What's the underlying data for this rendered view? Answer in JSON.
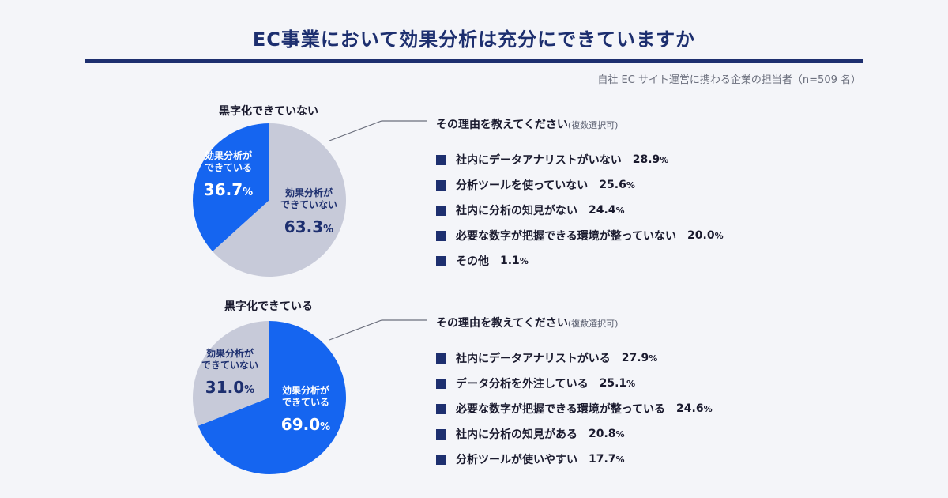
{
  "page": {
    "title": "EC事業において効果分析は充分にできていますか",
    "source": "自社 EC サイト運営に携わる企業の担当者（n=509 名）"
  },
  "colors": {
    "blue": "#1565f0",
    "gray": "#c7cad9",
    "navy": "#1d2f6f"
  },
  "charts": [
    {
      "title": "黒字化できていない",
      "reasons_title": "その理由を教えてください",
      "reasons_note": "(複数選択可)",
      "reasons": [
        {
          "label": "社内にデータアナリストがいない",
          "value": "28.9",
          "unit": "%"
        },
        {
          "label": "分析ツールを使っていない",
          "value": "25.6",
          "unit": "%"
        },
        {
          "label": "社内に分析の知見がない",
          "value": "24.4",
          "unit": "%"
        },
        {
          "label": "必要な数字が把握できる環境が整っていない",
          "value": "20.0",
          "unit": "%"
        },
        {
          "label": "その他",
          "value": "1.1",
          "unit": "%"
        }
      ]
    },
    {
      "title": "黒字化できている",
      "reasons_title": "その理由を教えてください",
      "reasons_note": "(複数選択可)",
      "reasons": [
        {
          "label": "社内にデータアナリストがいる",
          "value": "27.9",
          "unit": "%"
        },
        {
          "label": "データ分析を外注している",
          "value": "25.1",
          "unit": "%"
        },
        {
          "label": "必要な数字が把握できる環境が整っている",
          "value": "24.6",
          "unit": "%"
        },
        {
          "label": "社内に分析の知見がある",
          "value": "20.8",
          "unit": "%"
        },
        {
          "label": "分析ツールが使いやすい",
          "value": "17.7",
          "unit": "%"
        }
      ]
    }
  ],
  "chart_data": [
    {
      "type": "pie",
      "title": "黒字化できていない",
      "slices": [
        {
          "label_lines": [
            "効果分析が",
            "できていない"
          ],
          "value": 63.3,
          "color": "#c7cad9",
          "text_color": "#1d2f6f"
        },
        {
          "label_lines": [
            "効果分析が",
            "できている"
          ],
          "value": 36.7,
          "color": "#1565f0",
          "text_color": "#ffffff"
        }
      ]
    },
    {
      "type": "pie",
      "title": "黒字化できている",
      "slices": [
        {
          "label_lines": [
            "効果分析が",
            "できている"
          ],
          "value": 69.0,
          "color": "#1565f0",
          "text_color": "#ffffff"
        },
        {
          "label_lines": [
            "効果分析が",
            "できていない"
          ],
          "value": 31.0,
          "color": "#c7cad9",
          "text_color": "#1d2f6f"
        }
      ]
    },
    {
      "type": "bar",
      "title": "その理由を教えてください",
      "categories": [
        "社内にデータアナリストがいない",
        "分析ツールを使っていない",
        "社内に分析の知見がない",
        "必要な数字が把握できる環境が整っていない",
        "その他"
      ],
      "values": [
        28.9,
        25.6,
        24.4,
        20.0,
        1.1
      ],
      "unit": "%"
    },
    {
      "type": "bar",
      "title": "その理由を教えてください",
      "categories": [
        "社内にデータアナリストがいる",
        "データ分析を外注している",
        "必要な数字が把握できる環境が整っている",
        "社内に分析の知見がある",
        "分析ツールが使いやすい"
      ],
      "values": [
        27.9,
        25.1,
        24.6,
        20.8,
        17.7
      ],
      "unit": "%"
    }
  ]
}
